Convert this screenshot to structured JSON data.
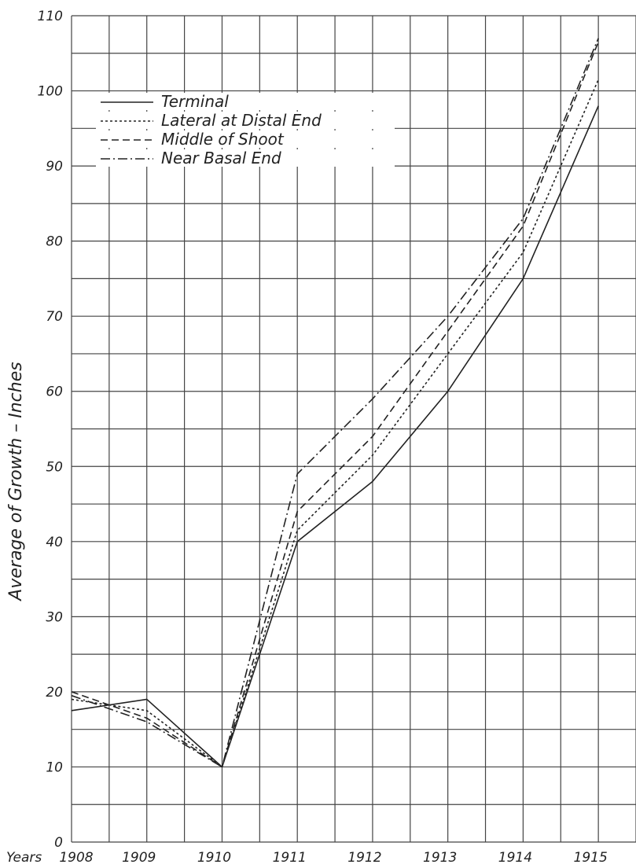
{
  "chart_data": {
    "type": "line",
    "title": "",
    "xlabel": "Years",
    "ylabel": "Average of Growth – Inches",
    "categories": [
      "1908",
      "1909",
      "1910",
      "1911",
      "1912",
      "1913",
      "1914",
      "1915"
    ],
    "ylim": [
      0,
      110
    ],
    "yticks": [
      "0",
      "10",
      "20",
      "30",
      "40",
      "50",
      "60",
      "70",
      "80",
      "90",
      "100",
      "110"
    ],
    "grid": true,
    "legend_position": "top-left",
    "series": [
      {
        "name": "Terminal",
        "style": "solid",
        "color": "#222222",
        "values": [
          17.5,
          19,
          10,
          40,
          48,
          60,
          75,
          98
        ]
      },
      {
        "name": "Lateral at Distal End",
        "style": "dotted",
        "color": "#222222",
        "values": [
          19,
          17.5,
          10,
          41.5,
          51.5,
          65,
          78.5,
          101.5
        ]
      },
      {
        "name": "Middle of Shoot",
        "style": "dashed",
        "color": "#222222",
        "values": [
          20,
          16.5,
          10,
          44,
          54,
          68,
          82,
          106.5
        ]
      },
      {
        "name": "Near Basal End",
        "style": "dashdot",
        "color": "#222222",
        "values": [
          19.5,
          16,
          10,
          49,
          59,
          70,
          83,
          107
        ]
      }
    ]
  }
}
